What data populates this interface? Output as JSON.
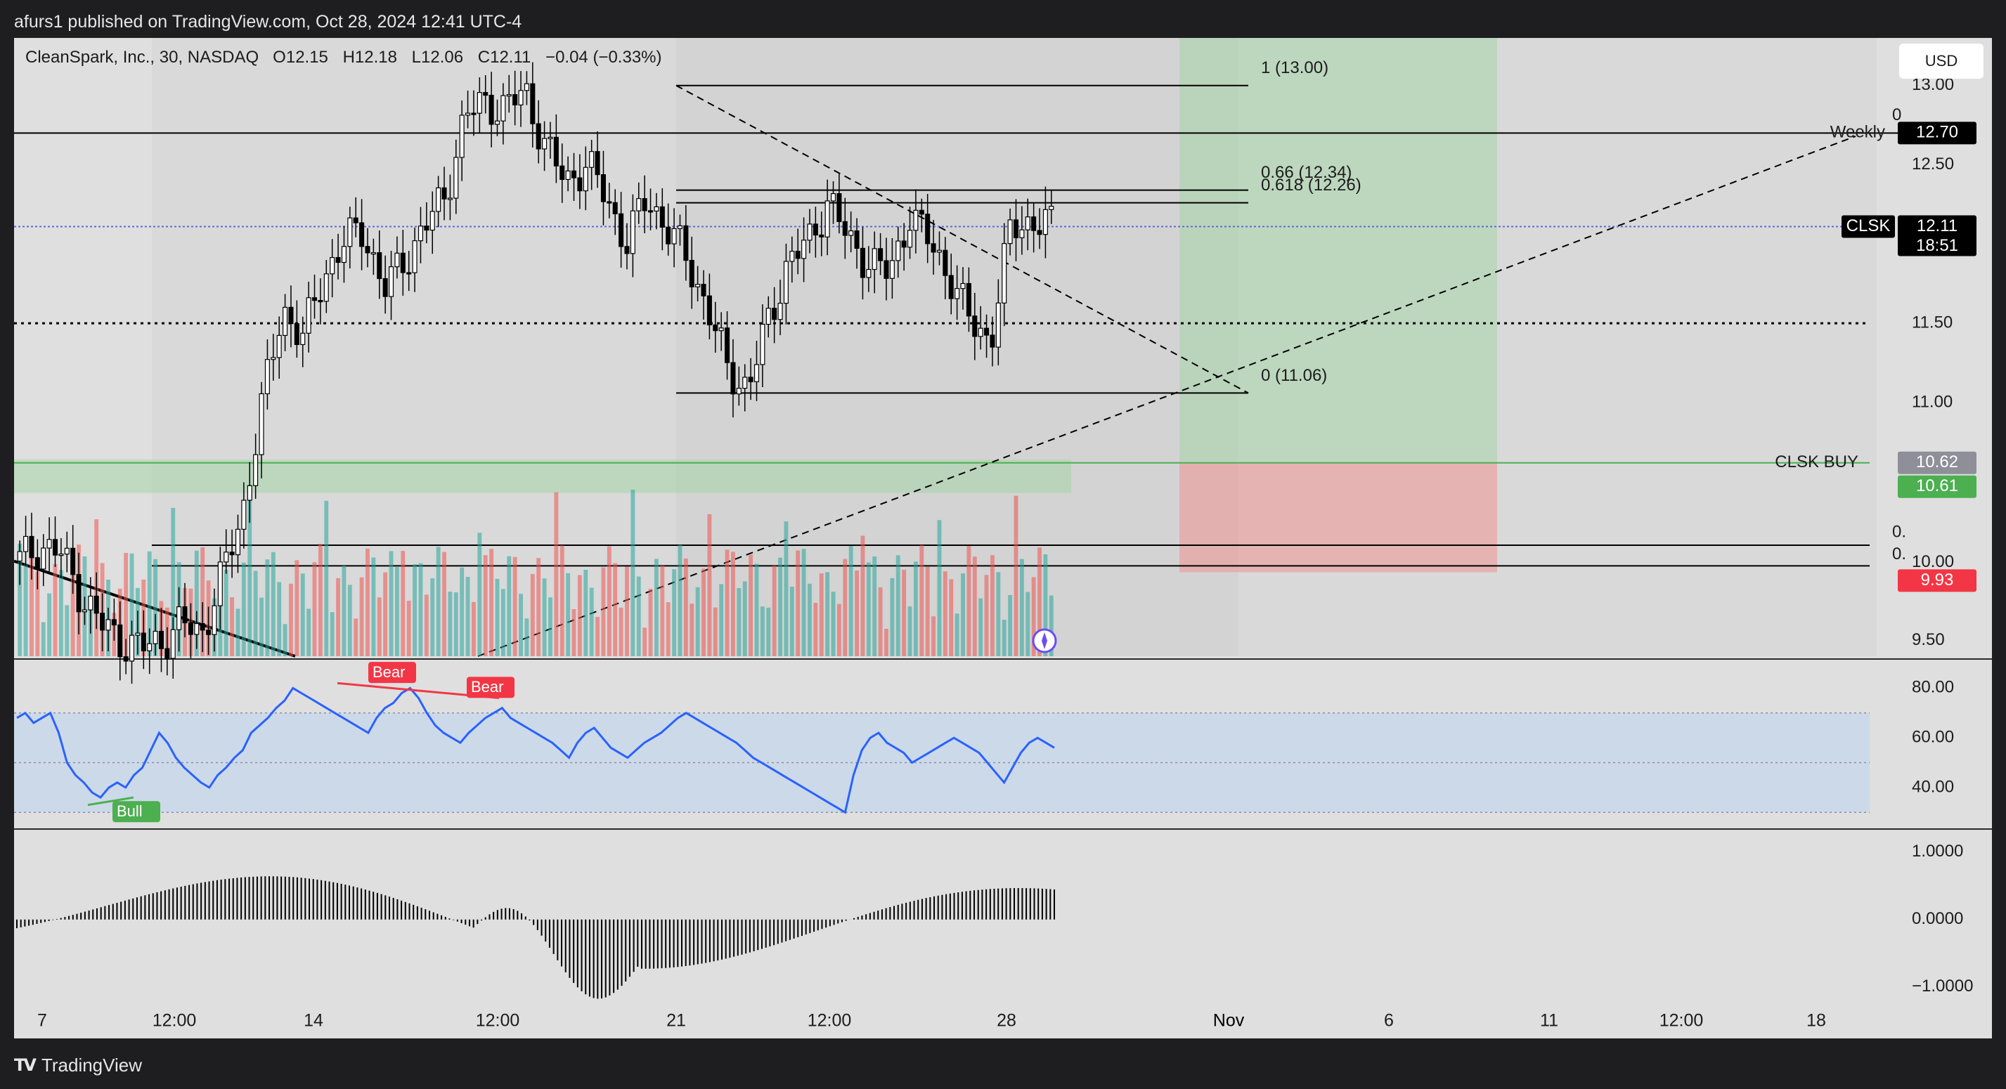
{
  "header": {
    "published": "afurs1 published on TradingView.com, Oct 28, 2024 12:41 UTC-4"
  },
  "legend": {
    "symbol": "CleanSpark, Inc., 30, NASDAQ",
    "o_label": "O",
    "o": "12.15",
    "h_label": "H",
    "h": "12.18",
    "l_label": "L",
    "l": "12.06",
    "c_label": "C",
    "c": "12.11",
    "change": "−0.04 (−0.33%)"
  },
  "currency_button": "USD",
  "footer": {
    "logo": "TradingView"
  },
  "colors": {
    "up": "#26a69a",
    "down": "#ef5350",
    "rsi": "#2962ff",
    "zone_green": "#a5d6a7",
    "zone_red": "#ef9a9a",
    "bull_label": "#4caf50",
    "bear_label": "#f23645",
    "buy_tag": "#4caf50",
    "stop_tag": "#f23645"
  },
  "chart_data": [
    {
      "type": "candlestick",
      "name": "price",
      "timeframe": "30",
      "y_ticks": [
        "13.00",
        "12.50",
        "11.50",
        "11.00",
        "9.50"
      ],
      "ylim": [
        9.4,
        13.3
      ],
      "x_ticks": [
        "7",
        "12:00",
        "14",
        "12:00",
        "21",
        "12:00",
        "28",
        "Nov",
        "6",
        "11",
        "12:00",
        "18"
      ],
      "close_path": [
        10.0,
        10.1,
        10.05,
        9.8,
        9.6,
        9.5,
        9.45,
        9.5,
        9.6,
        9.55,
        9.9,
        10.3,
        11.0,
        11.6,
        11.4,
        11.8,
        12.0,
        12.1,
        11.7,
        11.9,
        12.1,
        12.3,
        12.8,
        12.9,
        12.85,
        12.97,
        12.6,
        12.4,
        12.5,
        12.3,
        12.0,
        12.3,
        12.1,
        11.9,
        11.6,
        11.2,
        11.1,
        11.5,
        11.9,
        12.0,
        12.3,
        12.0,
        11.9,
        11.8,
        12.2,
        12.0,
        11.8,
        11.5,
        11.4,
        12.1,
        12.15,
        12.11
      ],
      "current_price": "12.11",
      "current_symbol": "CLSK",
      "countdown": "18:51",
      "price_tags": [
        {
          "label": "Weekly",
          "value": "12.70"
        },
        {
          "label": "CLSK BUY",
          "value": "10.62"
        },
        {
          "label": "",
          "value": "10.61"
        },
        {
          "label": "",
          "value": "9.93"
        }
      ],
      "fib_levels": [
        {
          "label": "1 (13.00)",
          "price": 13.0
        },
        {
          "label": "0.66 (12.34)",
          "price": 12.34
        },
        {
          "label": "0.618 (12.26)",
          "price": 12.26
        },
        {
          "label": "0 (11.06)",
          "price": 11.06
        }
      ],
      "horizontal_levels": [
        12.7,
        11.5,
        10.1,
        9.97
      ],
      "annotations": [
        "0",
        "0.",
        "0.",
        "10.00"
      ]
    },
    {
      "type": "line",
      "name": "rsi",
      "y_ticks": [
        "80.00",
        "60.00",
        "40.00"
      ],
      "ylim": [
        25,
        90
      ],
      "band": [
        30,
        70
      ],
      "midline": 50,
      "values": [
        68,
        70,
        66,
        68,
        70,
        62,
        50,
        45,
        42,
        38,
        36,
        40,
        42,
        40,
        45,
        48,
        55,
        62,
        58,
        52,
        48,
        45,
        42,
        40,
        45,
        48,
        52,
        55,
        62,
        65,
        68,
        72,
        75,
        80,
        78,
        76,
        74,
        72,
        70,
        68,
        66,
        64,
        62,
        68,
        72,
        74,
        78,
        80,
        76,
        70,
        65,
        62,
        60,
        58,
        62,
        65,
        68,
        70,
        72,
        68,
        66,
        64,
        62,
        60,
        58,
        55,
        52,
        58,
        62,
        64,
        60,
        56,
        54,
        52,
        55,
        58,
        60,
        62,
        65,
        68,
        70,
        68,
        66,
        64,
        62,
        60,
        58,
        55,
        52,
        50,
        48,
        46,
        44,
        42,
        40,
        38,
        36,
        34,
        32,
        30,
        45,
        55,
        60,
        62,
        58,
        56,
        54,
        50,
        52,
        54,
        56,
        58,
        60,
        58,
        56,
        54,
        50,
        46,
        42,
        48,
        54,
        58,
        60,
        58,
        56
      ]
    },
    {
      "type": "bar",
      "name": "oscillator",
      "y_ticks": [
        "1.0000",
        "0.0000",
        "−1.0000"
      ],
      "ylim": [
        -1.2,
        1.3
      ]
    },
    {
      "type": "labels",
      "items": [
        {
          "label": "Bear"
        },
        {
          "label": "Bear"
        },
        {
          "label": "Bull"
        }
      ]
    }
  ]
}
